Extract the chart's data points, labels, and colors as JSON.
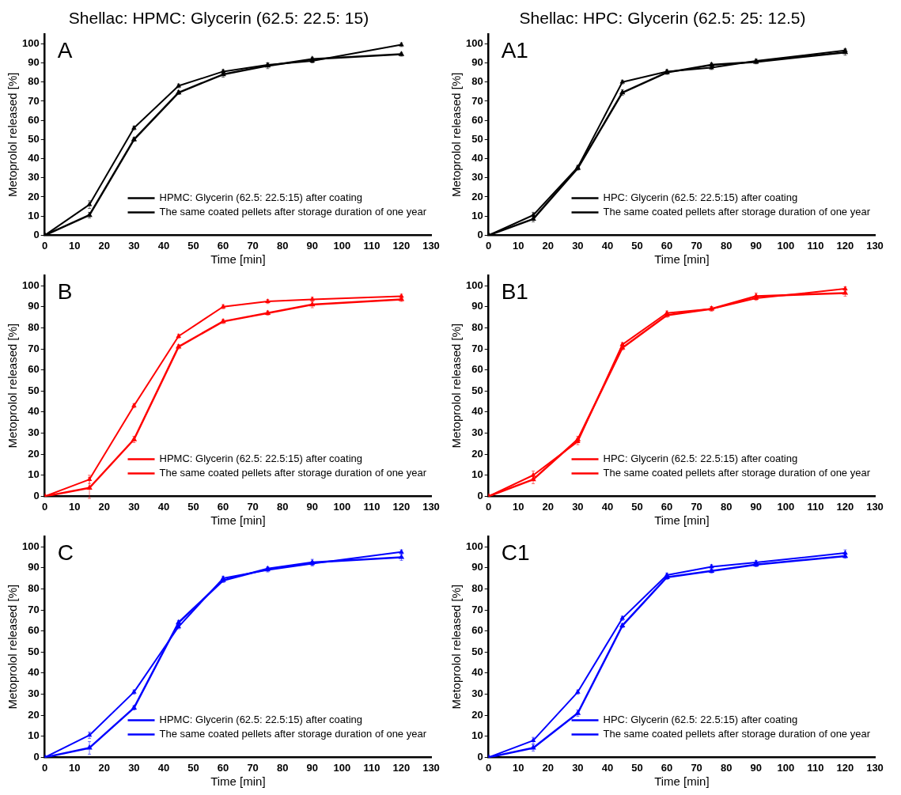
{
  "chart_data": [
    {
      "type": "line",
      "title": "Shellac: HPMC: Glycerin (62.5: 22.5: 15)",
      "xlabel": "Time [min]",
      "ylabel": "Metoprolol released [%]",
      "annotations": [
        "A"
      ],
      "x": [
        0,
        15,
        30,
        45,
        60,
        75,
        90,
        120
      ],
      "xlim": [
        0,
        130
      ],
      "xticks": [
        0,
        10,
        20,
        30,
        40,
        50,
        60,
        70,
        80,
        90,
        100,
        110,
        120,
        130
      ],
      "ylim": [
        0,
        105
      ],
      "yticks": [
        0,
        10,
        20,
        30,
        40,
        50,
        60,
        70,
        80,
        90,
        100
      ],
      "grid": false,
      "legend": "bottom right",
      "marker": "triangle",
      "line_style": "solid",
      "series": [
        {
          "name": "HPMC: Glycerin (62.5: 22.5:15) after coating",
          "color": "#000000",
          "values": [
            0,
            16,
            56,
            78,
            85.5,
            89,
            91,
            99.5
          ],
          "errors": [
            null,
            2,
            1,
            1,
            1,
            1,
            1,
            1
          ]
        },
        {
          "name": "The same coated pellets after storage duration of one year",
          "color": "#000000",
          "values": [
            0,
            10.5,
            50,
            74.5,
            84,
            88.5,
            92,
            94.5
          ],
          "errors": [
            null,
            1.5,
            1,
            1,
            1.5,
            1.5,
            1,
            1
          ]
        }
      ]
    },
    {
      "type": "line",
      "title": "Shellac: HPC: Glycerin (62.5: 25: 12.5)",
      "xlabel": "Time [min]",
      "ylabel": "Metoprolol released [%]",
      "annotations": [
        "A1"
      ],
      "x": [
        0,
        15,
        30,
        45,
        60,
        75,
        90,
        120
      ],
      "xlim": [
        0,
        130
      ],
      "xticks": [
        0,
        10,
        20,
        30,
        40,
        50,
        60,
        70,
        80,
        90,
        100,
        110,
        120,
        130
      ],
      "ylim": [
        0,
        105
      ],
      "yticks": [
        0,
        10,
        20,
        30,
        40,
        50,
        60,
        70,
        80,
        90,
        100
      ],
      "grid": false,
      "legend": "bottom right",
      "marker": "triangle",
      "line_style": "solid",
      "series": [
        {
          "name": "HPC: Glycerin (62.5: 22.5:15) after coating",
          "color": "#000000",
          "values": [
            0,
            10.5,
            35.5,
            80,
            85.5,
            87.5,
            91,
            96.5
          ],
          "errors": [
            null,
            1.5,
            1,
            1,
            1,
            1,
            1,
            1
          ]
        },
        {
          "name": "The same coated pellets after storage duration of one year",
          "color": "#000000",
          "values": [
            0,
            8.5,
            35,
            74.5,
            85,
            89,
            90.5,
            95.5
          ],
          "errors": [
            null,
            1.5,
            1,
            1.5,
            1,
            1,
            1,
            1.5
          ]
        }
      ]
    },
    {
      "type": "line",
      "xlabel": "Time [min]",
      "ylabel": "Metoprolol released [%]",
      "annotations": [
        "B"
      ],
      "x": [
        0,
        15,
        30,
        45,
        60,
        75,
        90,
        120
      ],
      "xlim": [
        0,
        130
      ],
      "xticks": [
        0,
        10,
        20,
        30,
        40,
        50,
        60,
        70,
        80,
        90,
        100,
        110,
        120,
        130
      ],
      "ylim": [
        0,
        105
      ],
      "yticks": [
        0,
        10,
        20,
        30,
        40,
        50,
        60,
        70,
        80,
        90,
        100
      ],
      "grid": false,
      "legend": "bottom right",
      "marker": "triangle",
      "line_style": "solid",
      "series": [
        {
          "name": "HPMC: Glycerin (62.5: 22.5:15) after coating",
          "color": "#ff0000",
          "values": [
            0,
            8,
            43,
            76,
            90,
            92.5,
            93.5,
            95
          ],
          "errors": [
            null,
            2,
            1,
            1,
            1,
            1,
            1,
            1
          ]
        },
        {
          "name": "The same coated pellets after storage duration of one year",
          "color": "#ff0000",
          "values": [
            0,
            4,
            27,
            71,
            83,
            87,
            91,
            93.5
          ],
          "errors": [
            null,
            5,
            1.5,
            1,
            1,
            1,
            1.5,
            1
          ]
        }
      ]
    },
    {
      "type": "line",
      "xlabel": "Time [min]",
      "ylabel": "Metoprolol released [%]",
      "annotations": [
        "B1"
      ],
      "x": [
        0,
        15,
        30,
        45,
        60,
        75,
        90,
        120
      ],
      "xlim": [
        0,
        130
      ],
      "xticks": [
        0,
        10,
        20,
        30,
        40,
        50,
        60,
        70,
        80,
        90,
        100,
        110,
        120,
        130
      ],
      "ylim": [
        0,
        105
      ],
      "yticks": [
        0,
        10,
        20,
        30,
        40,
        50,
        60,
        70,
        80,
        90,
        100
      ],
      "grid": false,
      "legend": "bottom right",
      "marker": "triangle",
      "line_style": "solid",
      "series": [
        {
          "name": "HPC: Glycerin (62.5: 22.5:15) after coating",
          "color": "#ff0000",
          "values": [
            0,
            10,
            26,
            72,
            87,
            89,
            94,
            98.5
          ],
          "errors": [
            null,
            2,
            1.5,
            1,
            1,
            1,
            1,
            1
          ]
        },
        {
          "name": "The same coated pellets after storage duration of one year",
          "color": "#ff0000",
          "values": [
            0,
            8,
            27,
            70.5,
            86,
            89,
            95,
            96.5
          ],
          "errors": [
            null,
            2,
            1.5,
            1,
            1,
            1,
            1.5,
            1.5
          ]
        }
      ]
    },
    {
      "type": "line",
      "xlabel": "Time [min]",
      "ylabel": "Metoprolol released [%]",
      "annotations": [
        "C"
      ],
      "x": [
        0,
        15,
        30,
        45,
        60,
        75,
        90,
        120
      ],
      "xlim": [
        0,
        130
      ],
      "xticks": [
        0,
        10,
        20,
        30,
        40,
        50,
        60,
        70,
        80,
        90,
        100,
        110,
        120,
        130
      ],
      "ylim": [
        0,
        105
      ],
      "yticks": [
        0,
        10,
        20,
        30,
        40,
        50,
        60,
        70,
        80,
        90,
        100
      ],
      "grid": false,
      "legend": "bottom right",
      "marker": "triangle",
      "line_style": "solid",
      "series": [
        {
          "name": "HPMC: Glycerin (62.5: 22.5:15) after coating",
          "color": "#0000ff",
          "values": [
            0,
            10.5,
            31,
            62,
            85,
            89,
            92,
            97.5
          ],
          "errors": [
            null,
            1.5,
            1,
            1,
            1,
            1,
            1,
            1
          ]
        },
        {
          "name": "The same coated pellets after storage duration of one year",
          "color": "#0000ff",
          "values": [
            0,
            4.5,
            23.5,
            64,
            84,
            89.5,
            92.5,
            95
          ],
          "errors": [
            null,
            3,
            1,
            1,
            1,
            1,
            1.5,
            1.5
          ]
        }
      ]
    },
    {
      "type": "line",
      "xlabel": "Time [min]",
      "ylabel": "Metoprolol released [%]",
      "annotations": [
        "C1"
      ],
      "x": [
        0,
        15,
        30,
        45,
        60,
        75,
        90,
        120
      ],
      "xlim": [
        0,
        130
      ],
      "xticks": [
        0,
        10,
        20,
        30,
        40,
        50,
        60,
        70,
        80,
        90,
        100,
        110,
        120,
        130
      ],
      "ylim": [
        0,
        105
      ],
      "yticks": [
        0,
        10,
        20,
        30,
        40,
        50,
        60,
        70,
        80,
        90,
        100
      ],
      "grid": false,
      "legend": "bottom right",
      "marker": "triangle",
      "line_style": "solid",
      "series": [
        {
          "name": "HPC: Glycerin (62.5: 22.5:15) after coating",
          "color": "#0000ff",
          "values": [
            0,
            8,
            31,
            66,
            86.5,
            90.5,
            92.5,
            97
          ],
          "errors": [
            null,
            1.5,
            1,
            1,
            1,
            1,
            1,
            1.5
          ]
        },
        {
          "name": "The same coated pellets after storage duration of one year",
          "color": "#0000ff",
          "values": [
            0,
            4.5,
            21,
            62.5,
            85.5,
            88.5,
            91.5,
            95.5
          ],
          "errors": [
            null,
            1.5,
            1.5,
            1,
            1,
            1,
            1,
            1
          ]
        }
      ]
    }
  ]
}
